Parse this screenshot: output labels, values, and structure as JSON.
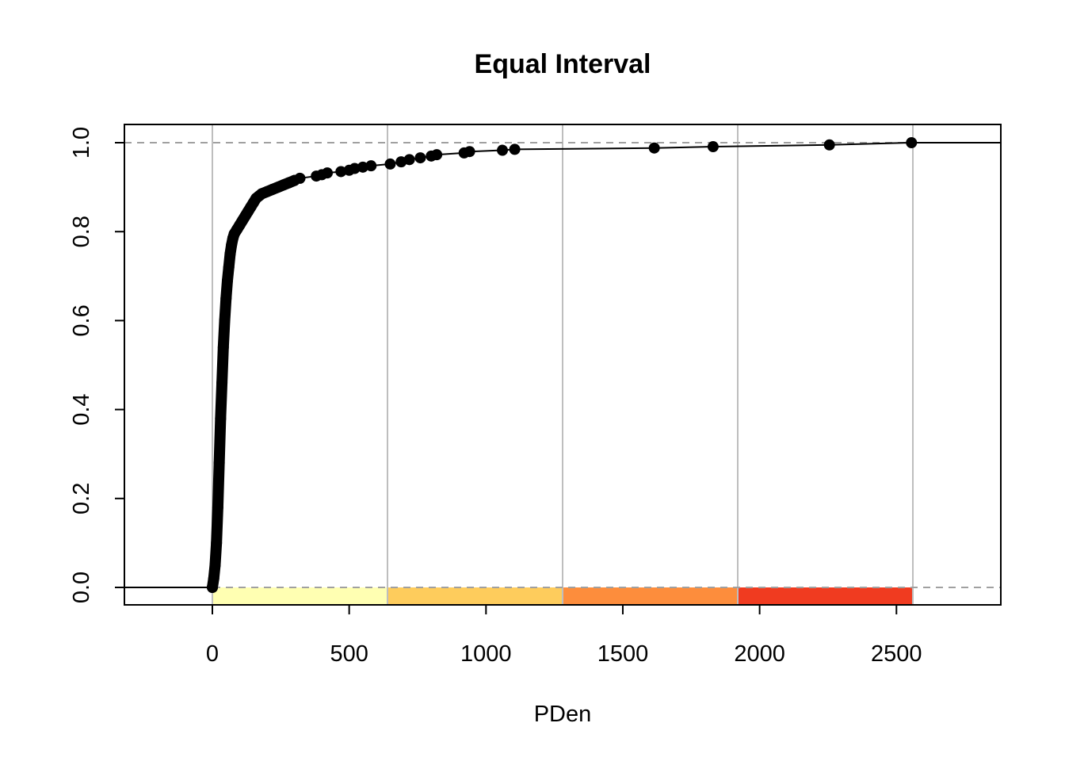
{
  "chart_data": {
    "type": "line",
    "title": "Equal Interval",
    "xlabel": "PDen",
    "ylabel": "",
    "xlim": [
      -320,
      2880
    ],
    "ylim": [
      -0.04,
      1.04
    ],
    "x_ticks": [
      0,
      500,
      1000,
      1500,
      2000,
      2500
    ],
    "x_tick_labels": [
      "0",
      "500",
      "1000",
      "1500",
      "2000",
      "2500"
    ],
    "y_ticks": [
      0.0,
      0.2,
      0.4,
      0.6,
      0.8,
      1.0
    ],
    "y_tick_labels": [
      "0.0",
      "0.2",
      "0.4",
      "0.6",
      "0.8",
      "1.0"
    ],
    "reference_lines_y": [
      0,
      1
    ],
    "class_breaks": [
      0,
      640,
      1280,
      1920,
      2560
    ],
    "class_colors": [
      "#FFFFB2",
      "#FECC5C",
      "#FD8D3C",
      "#F03B20",
      "#800026"
    ],
    "series": [
      {
        "x": [
          0,
          5,
          10,
          15,
          20,
          25,
          30,
          35,
          40,
          45,
          50,
          55,
          60,
          65,
          70,
          75,
          80,
          90,
          100,
          110,
          120,
          130,
          140,
          150,
          160,
          170,
          180,
          200,
          220,
          240,
          260,
          280,
          300,
          320,
          380,
          400,
          420,
          470,
          500,
          520,
          550,
          580,
          650,
          690,
          720,
          760,
          800,
          820,
          920,
          940,
          1060,
          1105,
          1615,
          1830,
          2255,
          2555
        ],
        "y": [
          0.0,
          0.02,
          0.05,
          0.1,
          0.18,
          0.28,
          0.38,
          0.46,
          0.54,
          0.6,
          0.65,
          0.69,
          0.72,
          0.75,
          0.77,
          0.785,
          0.795,
          0.805,
          0.815,
          0.825,
          0.835,
          0.845,
          0.855,
          0.865,
          0.875,
          0.88,
          0.885,
          0.89,
          0.895,
          0.9,
          0.905,
          0.91,
          0.915,
          0.92,
          0.925,
          0.928,
          0.932,
          0.935,
          0.938,
          0.942,
          0.945,
          0.948,
          0.952,
          0.957,
          0.962,
          0.966,
          0.97,
          0.973,
          0.977,
          0.98,
          0.983,
          0.985,
          0.988,
          0.991,
          0.995,
          1.0
        ]
      }
    ]
  }
}
